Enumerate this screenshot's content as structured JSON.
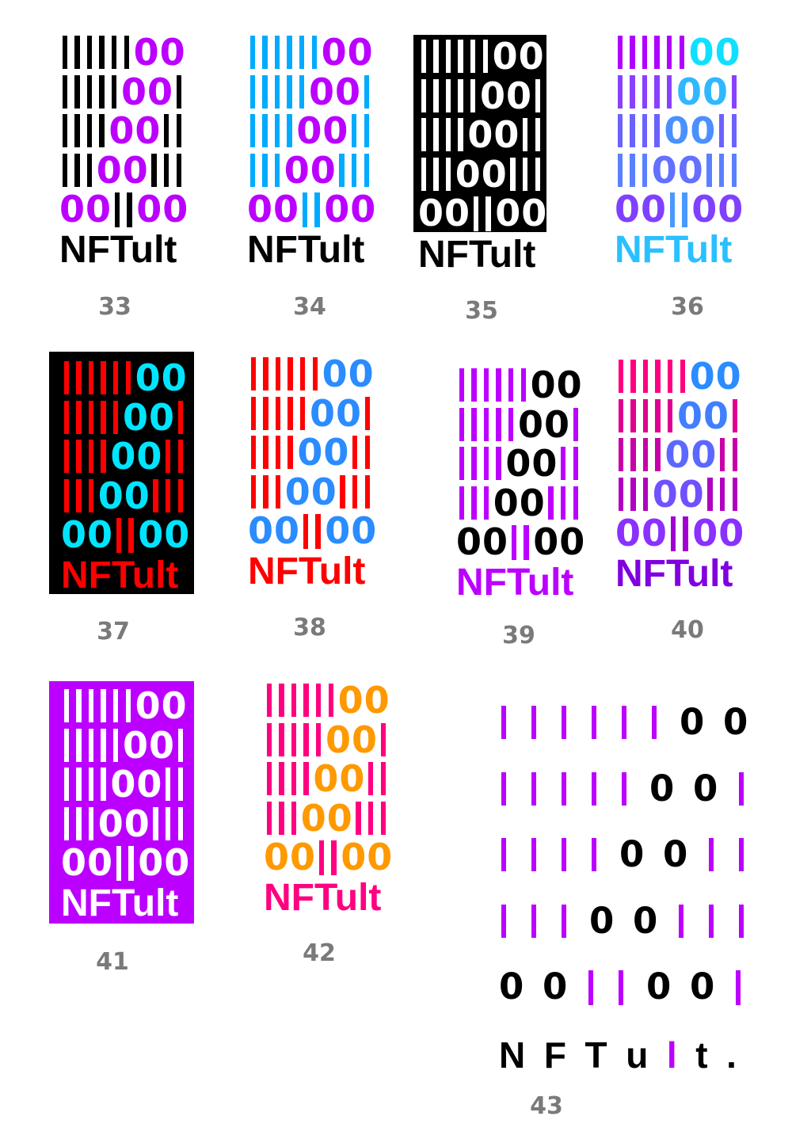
{
  "pattern": [
    "||||||00",
    "|||||00|",
    "||||00||",
    "|||00|||",
    "00||00"
  ],
  "wordmark": "NFTult",
  "logos": [
    {
      "label": "33",
      "background": null,
      "bar_colors": [
        "#000000",
        "#000000",
        "#000000",
        "#000000",
        "#000000"
      ],
      "zero_colors": [
        "#bb00ff",
        "#bb00ff",
        "#bb00ff",
        "#bb00ff",
        "#bb00ff"
      ],
      "wordmark_color": "#000000"
    },
    {
      "label": "34",
      "background": null,
      "bar_colors": [
        "#00aaff",
        "#00aaff",
        "#00aaff",
        "#00aaff",
        "#00aaff"
      ],
      "zero_colors": [
        "#bb00ff",
        "#bb00ff",
        "#bb00ff",
        "#bb00ff",
        "#bb00ff"
      ],
      "wordmark_color": "#000000"
    },
    {
      "label": "35",
      "background": "#000000",
      "bar_colors": [
        "#ffffff",
        "#ffffff",
        "#ffffff",
        "#ffffff",
        "#ffffff"
      ],
      "zero_colors": [
        "#ffffff",
        "#ffffff",
        "#ffffff",
        "#ffffff",
        "#ffffff"
      ],
      "wordmark_color": "#000000",
      "wordmark_outside_box": true
    },
    {
      "label": "36",
      "background": null,
      "bar_colors": [
        "#b000ff",
        "#8a40ff",
        "#6a62ff",
        "#5a80ff",
        "#4a98ff"
      ],
      "zero_colors": [
        "#10e0ff",
        "#30b8ff",
        "#4a90ff",
        "#6470ff",
        "#8040ff"
      ],
      "wordmark_color": "#2ac0ff"
    },
    {
      "label": "37",
      "background": "#000000",
      "bar_colors": [
        "#ff0000",
        "#ff0000",
        "#ff0000",
        "#ff0000",
        "#ff0000"
      ],
      "zero_colors": [
        "#00e5ff",
        "#00e5ff",
        "#00e5ff",
        "#00e5ff",
        "#00e5ff"
      ],
      "wordmark_color": "#ff0000"
    },
    {
      "label": "38",
      "background": null,
      "bar_colors": [
        "#ff0000",
        "#ff0000",
        "#ff0000",
        "#ff0000",
        "#ff0000"
      ],
      "zero_colors": [
        "#2a8cff",
        "#2a8cff",
        "#2a8cff",
        "#2a8cff",
        "#2a8cff"
      ],
      "wordmark_color": "#ff0000"
    },
    {
      "label": "39",
      "background": null,
      "bar_colors": [
        "#bb00ff",
        "#bb00ff",
        "#bb00ff",
        "#bb00ff",
        "#bb00ff"
      ],
      "zero_colors": [
        "#000000",
        "#000000",
        "#000000",
        "#000000",
        "#000000"
      ],
      "wordmark_color": "#bb00ff"
    },
    {
      "label": "40",
      "background": null,
      "bar_colors": [
        "#ff0080",
        "#e00090",
        "#c800a8",
        "#b000c0",
        "#a000d0"
      ],
      "zero_colors": [
        "#2a8cff",
        "#4080ff",
        "#5a68ff",
        "#7050ff",
        "#8a30ff"
      ],
      "wordmark_color": "#8000e0"
    },
    {
      "label": "41",
      "background": "#bb00ff",
      "bar_colors": [
        "#ffffff",
        "#ffffff",
        "#ffffff",
        "#ffffff",
        "#ffffff"
      ],
      "zero_colors": [
        "#ffffff",
        "#ffffff",
        "#ffffff",
        "#ffffff",
        "#ffffff"
      ],
      "wordmark_color": "#ffffff"
    },
    {
      "label": "42",
      "background": null,
      "bar_colors": [
        "#ff0080",
        "#ff0080",
        "#ff0080",
        "#ff0080",
        "#ff0080"
      ],
      "zero_colors": [
        "#ff9900",
        "#ff9900",
        "#ff9900",
        "#ff9900",
        "#ff9900"
      ],
      "wordmark_color": "#ff0080"
    },
    {
      "label": "43",
      "background": null,
      "pattern": [
        "||||||00",
        "|||||00|",
        "||||00||",
        "|||00|||",
        "00||00|"
      ],
      "bar_colors": [
        "#bb00ff",
        "#bb00ff",
        "#bb00ff",
        "#bb00ff",
        "#bb00ff"
      ],
      "zero_colors": [
        "#000000",
        "#000000",
        "#000000",
        "#000000",
        "#000000"
      ],
      "wordmark_color": "#000000",
      "wordmark_letters": [
        "N",
        "F",
        "T",
        "u",
        "l",
        "t",
        "."
      ],
      "wordmark_accent_letter": "l",
      "wordmark_accent_color": "#bb00ff",
      "spaced": true
    }
  ]
}
